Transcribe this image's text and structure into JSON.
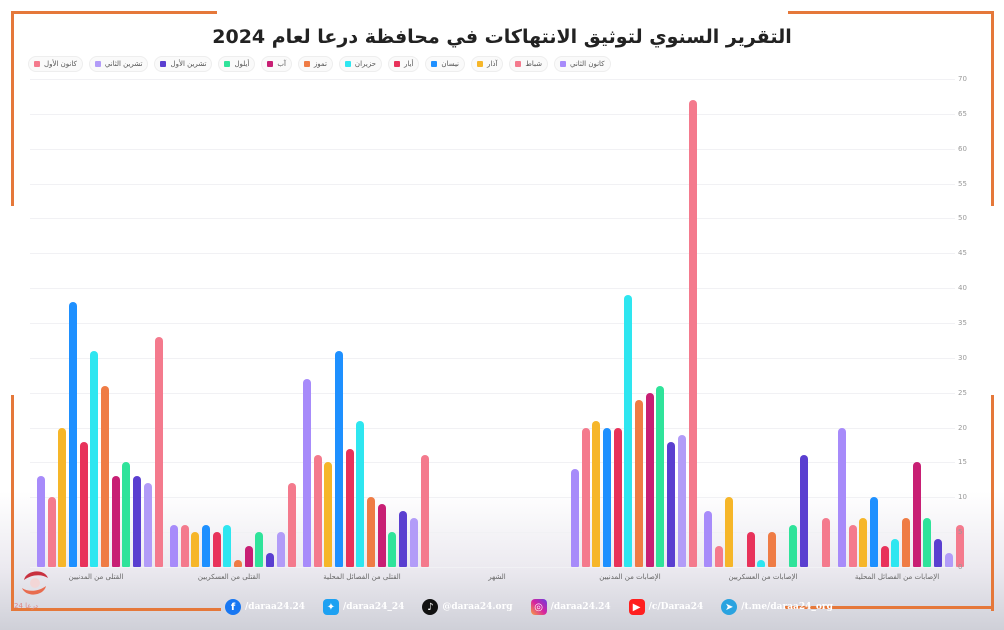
{
  "title": "التقرير السنوي لتوثيق الانتهاكات في محافظة درعا لعام 2024",
  "legend": [
    {
      "label": "كانون الثاني",
      "color": "#a78bfa"
    },
    {
      "label": "شباط",
      "color": "#f47a8d"
    },
    {
      "label": "آذار",
      "color": "#f6b629"
    },
    {
      "label": "نيسان",
      "color": "#1e90ff"
    },
    {
      "label": "أيار",
      "color": "#e8325a"
    },
    {
      "label": "حزيران",
      "color": "#2ee6f0"
    },
    {
      "label": "تموز",
      "color": "#ef7c45"
    },
    {
      "label": "آب",
      "color": "#c81f74"
    },
    {
      "label": "أيلول",
      "color": "#2fe39a"
    },
    {
      "label": "تشرين الأول",
      "color": "#5a3fd0"
    },
    {
      "label": "تشرين الثاني",
      "color": "#b29cf8"
    },
    {
      "label": "كانون الأول",
      "color": "#f47a8d"
    }
  ],
  "y_ticks": [
    "0",
    "5",
    "10",
    "15",
    "20",
    "25",
    "30",
    "35",
    "40",
    "45",
    "50",
    "55",
    "60",
    "65",
    "70"
  ],
  "chart_data": {
    "type": "bar",
    "title": "التقرير السنوي لتوثيق الانتهاكات في محافظة درعا لعام 2024",
    "xlabel": "",
    "ylabel": "",
    "ylim": [
      0,
      70
    ],
    "grid": true,
    "legend_position": "top",
    "categories": [
      "القتلى من المدنيين",
      "القتلى من العسكريين",
      "القتلى من الفصائل المحلية",
      "الشهر",
      "الإصابات من المدنيين",
      "الإصابات من العسكريين",
      "الإصابات من الفصائل المحلية"
    ],
    "series": [
      {
        "name": "كانون الثاني",
        "values": [
          13,
          6,
          27,
          null,
          14,
          8,
          20
        ]
      },
      {
        "name": "شباط",
        "values": [
          10,
          6,
          16,
          null,
          20,
          3,
          6
        ]
      },
      {
        "name": "آذار",
        "values": [
          20,
          5,
          15,
          null,
          21,
          10,
          7
        ]
      },
      {
        "name": "نيسان",
        "values": [
          38,
          6,
          31,
          null,
          20,
          0,
          10
        ]
      },
      {
        "name": "أيار",
        "values": [
          18,
          5,
          17,
          null,
          20,
          5,
          3
        ]
      },
      {
        "name": "حزيران",
        "values": [
          31,
          6,
          21,
          null,
          39,
          1,
          4
        ]
      },
      {
        "name": "تموز",
        "values": [
          26,
          1,
          10,
          null,
          24,
          5,
          7
        ]
      },
      {
        "name": "آب",
        "values": [
          13,
          3,
          9,
          null,
          25,
          0,
          15
        ]
      },
      {
        "name": "أيلول",
        "values": [
          15,
          5,
          5,
          null,
          26,
          6,
          7
        ]
      },
      {
        "name": "تشرين الأول",
        "values": [
          13,
          2,
          8,
          null,
          18,
          16,
          4
        ]
      },
      {
        "name": "تشرين الثاني",
        "values": [
          12,
          5,
          7,
          null,
          19,
          0,
          2
        ]
      },
      {
        "name": "كانون الأول",
        "values": [
          33,
          12,
          16,
          null,
          67,
          7,
          6
        ]
      }
    ]
  },
  "footer": {
    "facebook": "/daraa24.24",
    "twitter": "/daraa24_24",
    "tiktok": "@daraa24.org",
    "instagram": "/daraa24.24",
    "youtube": "/c/Daraa24",
    "telegram": "/t.me/daraa24_org"
  },
  "logo_text": "درعا 24"
}
